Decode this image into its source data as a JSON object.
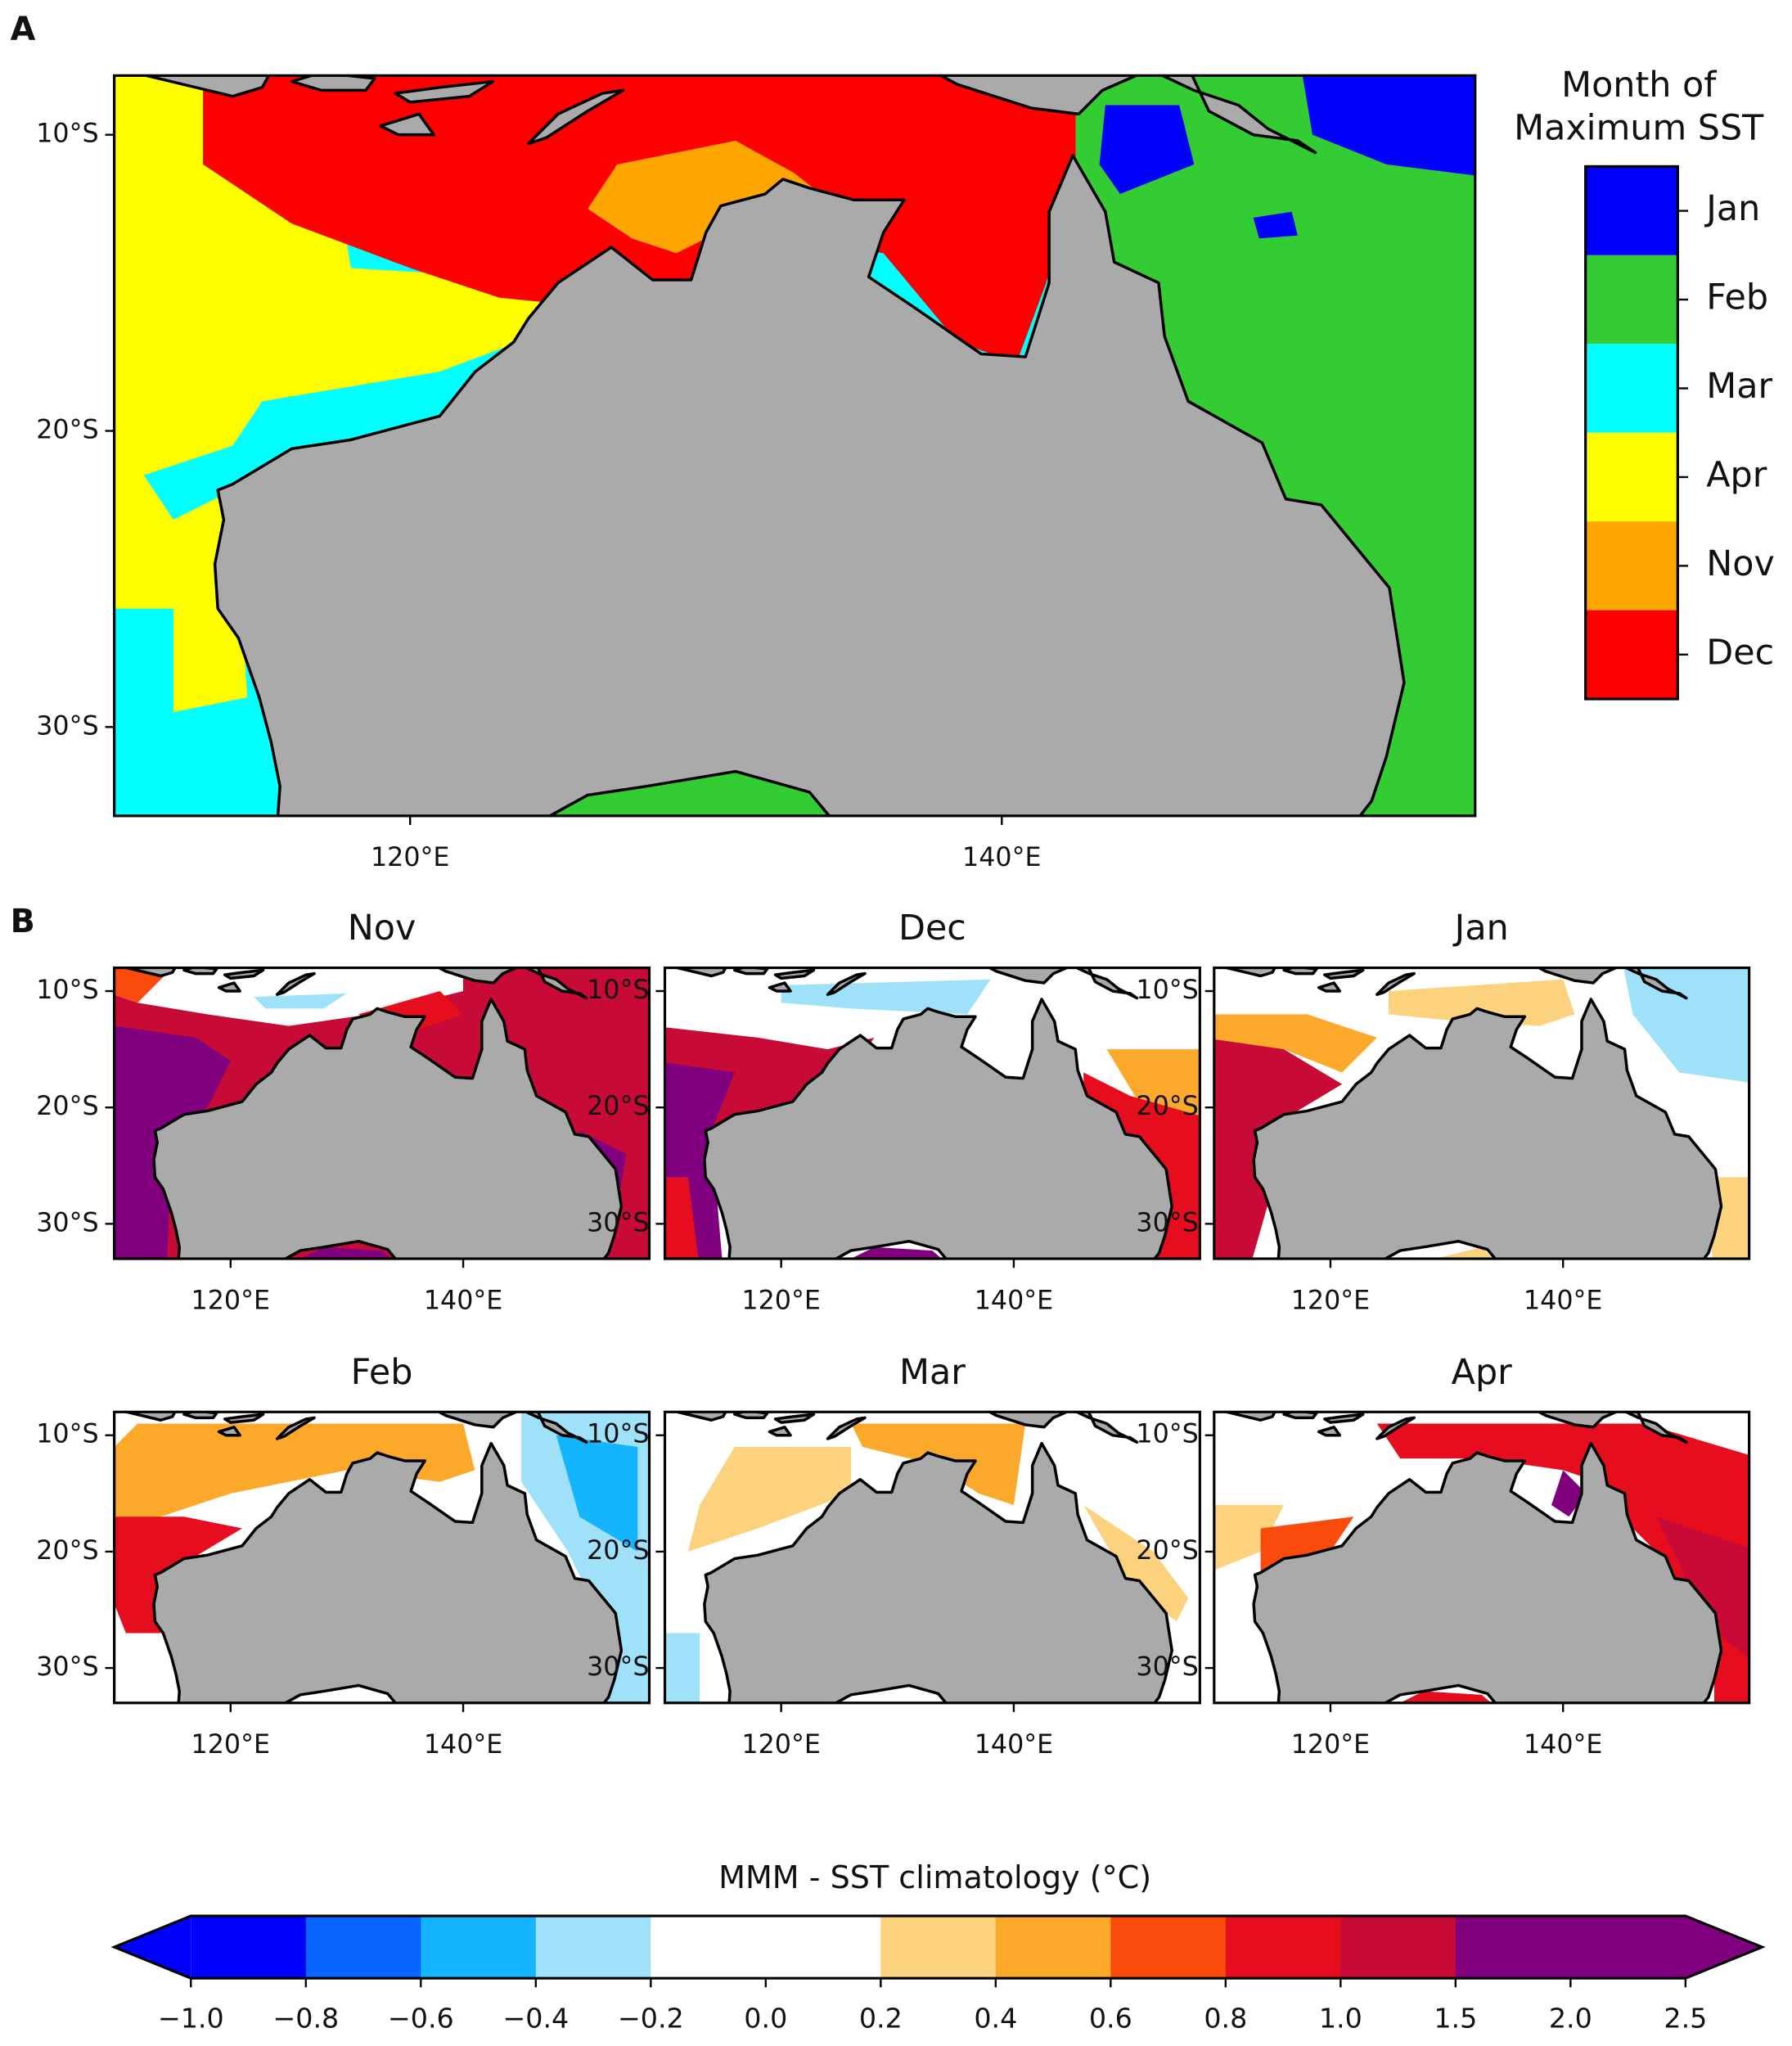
{
  "panel_a": {
    "label": "A",
    "legend_title": [
      "Month of",
      "Maximum SST"
    ],
    "legend": [
      {
        "name": "Jan",
        "color": "#0000ff"
      },
      {
        "name": "Feb",
        "color": "#33cc33"
      },
      {
        "name": "Mar",
        "color": "#00ffff"
      },
      {
        "name": "Apr",
        "color": "#ffff00"
      },
      {
        "name": "Nov",
        "color": "#ffa500"
      },
      {
        "name": "Dec",
        "color": "#ff0000"
      }
    ],
    "land_color": "#aaaaaa",
    "xlim": [
      110,
      156
    ],
    "ylim": [
      -33,
      -8
    ],
    "xticks": [
      {
        "value": 120,
        "label": "120°E"
      },
      {
        "value": 140,
        "label": "140°E"
      }
    ],
    "yticks": [
      {
        "value": -10,
        "label": "10°S"
      },
      {
        "value": -20,
        "label": "20°S"
      },
      {
        "value": -30,
        "label": "30°S"
      }
    ]
  },
  "panel_b": {
    "label": "B",
    "titles": [
      "Nov",
      "Dec",
      "Jan",
      "Feb",
      "Mar",
      "Apr"
    ],
    "xlim": [
      110,
      156
    ],
    "ylim": [
      -33,
      -8
    ],
    "xticks": [
      {
        "value": 120,
        "label": "120°E"
      },
      {
        "value": 140,
        "label": "140°E"
      }
    ],
    "yticks": [
      {
        "value": -10,
        "label": "10°S"
      },
      {
        "value": -20,
        "label": "20°S"
      },
      {
        "value": -30,
        "label": "30°S"
      }
    ]
  },
  "colorbar": {
    "title": "MMM - SST climatology (°C)",
    "ticks": [
      {
        "value": -1.0,
        "label": "−1.0"
      },
      {
        "value": -0.8,
        "label": "−0.8"
      },
      {
        "value": -0.6,
        "label": "−0.6"
      },
      {
        "value": -0.4,
        "label": "−0.4"
      },
      {
        "value": -0.2,
        "label": "−0.2"
      },
      {
        "value": 0,
        "label": "0.0"
      },
      0.2,
      0.4,
      0.6,
      0.8,
      {
        "value": 1,
        "label": "1.0"
      },
      1.5,
      {
        "value": 2,
        "label": "2.0"
      },
      2.5
    ],
    "colors": [
      "#0000ff",
      "#0a64ff",
      "#14b4ff",
      "#a0e1fa",
      "#ffffff",
      "#ffffff",
      "#fcd27e",
      "#fca82a",
      "#fa4a0c",
      "#e60e1e",
      "#c80a37",
      "#800080",
      "#800080"
    ],
    "under_color": "#0000ff",
    "over_color": "#800080"
  }
}
